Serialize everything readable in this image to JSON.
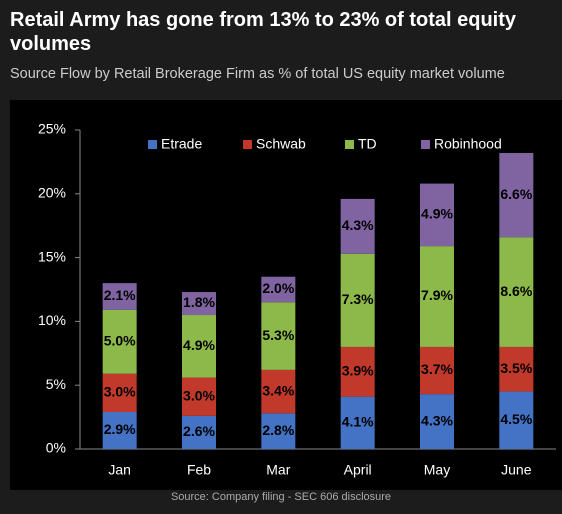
{
  "chart_data": {
    "type": "stacked_bar",
    "title": "Retail Army has gone from 13% to 23% of total equity volumes",
    "subtitle": "Source Flow by Retail Brokerage Firm as % of total US equity market volume",
    "source": "Source: Company filing - SEC 606 disclosure",
    "categories": [
      "Jan",
      "Feb",
      "Mar",
      "April",
      "May",
      "June"
    ],
    "series": [
      {
        "name": "Etrade",
        "color": "#4472c4",
        "values": [
          2.9,
          2.6,
          2.8,
          4.1,
          4.3,
          4.5
        ],
        "value_labels": [
          "2.9%",
          "2.6%",
          "2.8%",
          "4.1%",
          "4.3%",
          "4.5%"
        ]
      },
      {
        "name": "Schwab",
        "color": "#c0392b",
        "values": [
          3.0,
          3.0,
          3.4,
          3.9,
          3.7,
          3.5
        ],
        "value_labels": [
          "3.0%",
          "3.0%",
          "3.4%",
          "3.9%",
          "3.7%",
          "3.5%"
        ]
      },
      {
        "name": "TD",
        "color": "#8db84a",
        "values": [
          5.0,
          4.9,
          5.3,
          7.3,
          7.9,
          8.6
        ],
        "value_labels": [
          "5.0%",
          "4.9%",
          "5.3%",
          "7.3%",
          "7.9%",
          "8.6%"
        ]
      },
      {
        "name": "Robinhood",
        "color": "#8064a2",
        "values": [
          2.1,
          1.8,
          2.0,
          4.3,
          4.9,
          6.6
        ],
        "value_labels": [
          "2.1%",
          "1.8%",
          "2.0%",
          "4.3%",
          "4.9%",
          "6.6%"
        ]
      }
    ],
    "ylim": [
      0,
      25
    ],
    "yticks": [
      {
        "value": 0,
        "label": "0%"
      },
      {
        "value": 5,
        "label": "5%"
      },
      {
        "value": 10,
        "label": "10%"
      },
      {
        "value": 15,
        "label": "15%"
      },
      {
        "value": 20,
        "label": "20%"
      },
      {
        "value": 25,
        "label": "25%"
      }
    ],
    "grid": false,
    "legend": "top"
  }
}
